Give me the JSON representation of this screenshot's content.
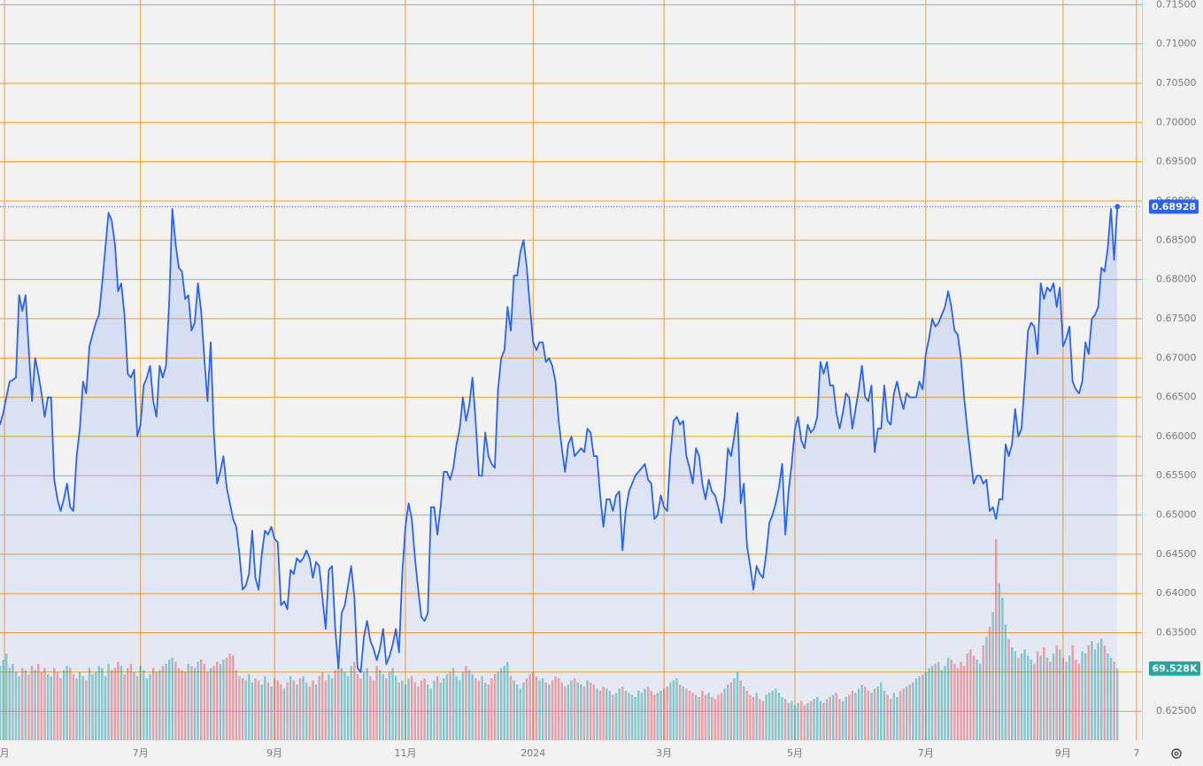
{
  "chart_data": {
    "type": "line",
    "xlim": [
      0,
      357.7
    ],
    "ylim": [
      0.6213,
      0.7156
    ],
    "xticks": [
      {
        "value": 1.4,
        "label": "月"
      },
      {
        "value": 44,
        "label": "7月"
      },
      {
        "value": 86,
        "label": "9月"
      },
      {
        "value": 127,
        "label": "11月"
      },
      {
        "value": 167,
        "label": "2024"
      },
      {
        "value": 208,
        "label": "3月"
      },
      {
        "value": 249,
        "label": "5月"
      },
      {
        "value": 290,
        "label": "7月"
      },
      {
        "value": 333,
        "label": "9月"
      },
      {
        "value": 356,
        "label": "7"
      }
    ],
    "yticks": [
      {
        "value": 0.625,
        "label": "0.62500"
      },
      {
        "value": 0.63,
        "label": "0.63000"
      },
      {
        "value": 0.635,
        "label": "0.63500"
      },
      {
        "value": 0.64,
        "label": "0.64000"
      },
      {
        "value": 0.645,
        "label": "0.64500"
      },
      {
        "value": 0.65,
        "label": "0.65000"
      },
      {
        "value": 0.655,
        "label": "0.65500"
      },
      {
        "value": 0.66,
        "label": "0.66000"
      },
      {
        "value": 0.665,
        "label": "0.66500"
      },
      {
        "value": 0.67,
        "label": "0.67000"
      },
      {
        "value": 0.675,
        "label": "0.67500"
      },
      {
        "value": 0.68,
        "label": "0.68000"
      },
      {
        "value": 0.685,
        "label": "0.68500"
      },
      {
        "value": 0.69,
        "label": "0.69000"
      },
      {
        "value": 0.695,
        "label": "0.69500"
      },
      {
        "value": 0.7,
        "label": "0.70000"
      },
      {
        "value": 0.705,
        "label": "0.70500"
      },
      {
        "value": 0.71,
        "label": "0.71000"
      },
      {
        "value": 0.715,
        "label": "0.71500"
      }
    ],
    "grid": true,
    "grid_color": "#f0a030",
    "price_label": "0.68928",
    "series": [
      {
        "color": "#2962ff",
        "values": [
          0.6615,
          0.663,
          0.665,
          0.667,
          0.6672,
          0.6675,
          0.678,
          0.676,
          0.678,
          0.671,
          0.6645,
          0.67,
          0.668,
          0.6655,
          0.6625,
          0.665,
          0.665,
          0.6545,
          0.652,
          0.6505,
          0.652,
          0.654,
          0.651,
          0.6505,
          0.6575,
          0.661,
          0.667,
          0.6655,
          0.6715,
          0.673,
          0.6745,
          0.6755,
          0.6795,
          0.684,
          0.6885,
          0.6875,
          0.6845,
          0.6785,
          0.6795,
          0.6755,
          0.668,
          0.6675,
          0.6685,
          0.66,
          0.6615,
          0.6665,
          0.6675,
          0.669,
          0.6645,
          0.6625,
          0.669,
          0.6675,
          0.669,
          0.677,
          0.689,
          0.6845,
          0.6815,
          0.681,
          0.6775,
          0.678,
          0.6735,
          0.6745,
          0.6795,
          0.676,
          0.67,
          0.6645,
          0.672,
          0.6605,
          0.654,
          0.6555,
          0.6575,
          0.6535,
          0.6515,
          0.6495,
          0.6485,
          0.645,
          0.6405,
          0.641,
          0.6425,
          0.648,
          0.642,
          0.6405,
          0.645,
          0.648,
          0.6475,
          0.6485,
          0.647,
          0.6465,
          0.6385,
          0.639,
          0.638,
          0.643,
          0.6425,
          0.6445,
          0.644,
          0.6445,
          0.6455,
          0.6445,
          0.642,
          0.644,
          0.6435,
          0.6395,
          0.6355,
          0.643,
          0.6435,
          0.6355,
          0.6305,
          0.6375,
          0.6385,
          0.641,
          0.6435,
          0.6395,
          0.6305,
          0.63,
          0.6345,
          0.6365,
          0.634,
          0.633,
          0.6315,
          0.633,
          0.6355,
          0.631,
          0.632,
          0.6335,
          0.6355,
          0.6325,
          0.6425,
          0.6485,
          0.6515,
          0.6495,
          0.6445,
          0.6405,
          0.637,
          0.6365,
          0.6375,
          0.651,
          0.651,
          0.6475,
          0.651,
          0.6555,
          0.6555,
          0.6545,
          0.656,
          0.659,
          0.661,
          0.665,
          0.662,
          0.664,
          0.6675,
          0.662,
          0.655,
          0.655,
          0.6605,
          0.6575,
          0.6565,
          0.656,
          0.666,
          0.67,
          0.671,
          0.6765,
          0.6735,
          0.6805,
          0.6805,
          0.6835,
          0.685,
          0.6815,
          0.6765,
          0.672,
          0.671,
          0.672,
          0.672,
          0.6695,
          0.67,
          0.669,
          0.667,
          0.662,
          0.6585,
          0.6555,
          0.659,
          0.66,
          0.6575,
          0.658,
          0.6585,
          0.658,
          0.661,
          0.6605,
          0.6575,
          0.6575,
          0.6525,
          0.6485,
          0.652,
          0.652,
          0.6505,
          0.6525,
          0.653,
          0.6455,
          0.6505,
          0.653,
          0.654,
          0.655,
          0.6555,
          0.656,
          0.6565,
          0.6545,
          0.654,
          0.6495,
          0.65,
          0.6525,
          0.651,
          0.6505,
          0.6575,
          0.662,
          0.6625,
          0.6615,
          0.662,
          0.6575,
          0.656,
          0.654,
          0.6585,
          0.6575,
          0.654,
          0.652,
          0.6545,
          0.653,
          0.6525,
          0.651,
          0.649,
          0.6525,
          0.6585,
          0.6575,
          0.66,
          0.663,
          0.6515,
          0.654,
          0.646,
          0.6435,
          0.6405,
          0.6435,
          0.6425,
          0.642,
          0.645,
          0.649,
          0.65,
          0.6515,
          0.6535,
          0.6565,
          0.6475,
          0.653,
          0.6565,
          0.661,
          0.6625,
          0.6595,
          0.6585,
          0.6615,
          0.6605,
          0.661,
          0.6625,
          0.6695,
          0.668,
          0.6695,
          0.6665,
          0.6665,
          0.663,
          0.661,
          0.663,
          0.6655,
          0.665,
          0.661,
          0.6635,
          0.666,
          0.669,
          0.665,
          0.6645,
          0.6665,
          0.658,
          0.661,
          0.661,
          0.6665,
          0.662,
          0.6615,
          0.6655,
          0.667,
          0.665,
          0.6635,
          0.6655,
          0.665,
          0.665,
          0.665,
          0.667,
          0.666,
          0.6705,
          0.6725,
          0.675,
          0.674,
          0.6745,
          0.6755,
          0.6765,
          0.6785,
          0.6765,
          0.6735,
          0.673,
          0.67,
          0.665,
          0.661,
          0.6575,
          0.654,
          0.655,
          0.655,
          0.654,
          0.6545,
          0.6505,
          0.651,
          0.6495,
          0.652,
          0.652,
          0.659,
          0.6575,
          0.659,
          0.6635,
          0.66,
          0.661,
          0.667,
          0.6735,
          0.6745,
          0.674,
          0.6705,
          0.6795,
          0.6775,
          0.679,
          0.6785,
          0.6795,
          0.6765,
          0.679,
          0.6715,
          0.6725,
          0.674,
          0.667,
          0.666,
          0.6655,
          0.667,
          0.672,
          0.6705,
          0.675,
          0.6755,
          0.6765,
          0.6815,
          0.681,
          0.684,
          0.689,
          0.6825,
          0.68928
        ]
      }
    ],
    "volume": {
      "ylim": [
        0,
        270
      ],
      "up_color": "rgba(38,166,154,0.5)",
      "down_color": "rgba(239,83,80,0.5)",
      "label": "69.528K",
      "values": [
        72,
        78,
        84,
        70,
        74,
        66,
        62,
        70,
        68,
        64,
        72,
        68,
        74,
        66,
        70,
        64,
        62,
        70,
        66,
        60,
        68,
        72,
        70,
        64,
        60,
        66,
        62,
        58,
        70,
        64,
        66,
        72,
        70,
        62,
        74,
        68,
        70,
        76,
        72,
        64,
        70,
        74,
        66,
        62,
        72,
        68,
        60,
        64,
        70,
        66,
        68,
        72,
        74,
        78,
        80,
        76,
        70,
        68,
        66,
        74,
        72,
        70,
        76,
        78,
        74,
        66,
        70,
        72,
        76,
        74,
        78,
        80,
        84,
        82,
        68,
        62,
        60,
        58,
        64,
        56,
        60,
        58,
        54,
        62,
        56,
        52,
        60,
        58,
        54,
        50,
        56,
        62,
        58,
        54,
        60,
        62,
        56,
        52,
        58,
        54,
        62,
        66,
        58,
        64,
        60,
        68,
        74,
        70,
        66,
        62,
        72,
        76,
        64,
        60,
        66,
        70,
        62,
        58,
        72,
        68,
        64,
        60,
        66,
        70,
        62,
        56,
        58,
        54,
        60,
        62,
        56,
        52,
        58,
        60,
        54,
        50,
        58,
        62,
        56,
        60,
        64,
        66,
        70,
        62,
        58,
        66,
        72,
        68,
        64,
        60,
        58,
        62,
        56,
        54,
        60,
        64,
        66,
        70,
        72,
        76,
        62,
        58,
        54,
        50,
        56,
        60,
        64,
        66,
        62,
        58,
        60,
        56,
        54,
        58,
        62,
        60,
        56,
        52,
        54,
        58,
        60,
        56,
        54,
        52,
        58,
        56,
        54,
        50,
        48,
        52,
        50,
        48,
        44,
        46,
        50,
        52,
        48,
        46,
        44,
        42,
        48,
        46,
        50,
        52,
        48,
        44,
        46,
        48,
        50,
        52,
        56,
        58,
        60,
        54,
        52,
        50,
        48,
        46,
        44,
        42,
        48,
        44,
        46,
        42,
        40,
        44,
        46,
        50,
        54,
        56,
        60,
        66,
        58,
        52,
        48,
        44,
        42,
        46,
        40,
        38,
        44,
        46,
        48,
        50,
        46,
        42,
        40,
        36,
        38,
        34,
        36,
        38,
        34,
        36,
        38,
        40,
        42,
        38,
        36,
        40,
        42,
        44,
        46,
        40,
        38,
        42,
        44,
        48,
        46,
        50,
        54,
        52,
        48,
        46,
        50,
        52,
        56,
        48,
        44,
        40,
        46,
        42,
        48,
        50,
        52,
        54,
        56,
        60,
        62,
        64,
        66,
        70,
        72,
        74,
        76,
        68,
        72,
        80,
        78,
        74,
        70,
        76,
        72,
        84,
        88,
        82,
        78,
        74,
        92,
        100,
        110,
        124,
        195,
        152,
        138,
        112,
        98,
        90,
        86,
        80,
        84,
        88,
        82,
        78,
        74,
        86,
        82,
        90,
        80,
        76,
        84,
        92,
        88,
        80,
        76,
        82,
        92,
        78,
        74,
        86,
        84,
        92,
        96,
        88,
        94,
        98,
        92,
        84,
        80,
        76,
        69.528
      ]
    }
  }
}
